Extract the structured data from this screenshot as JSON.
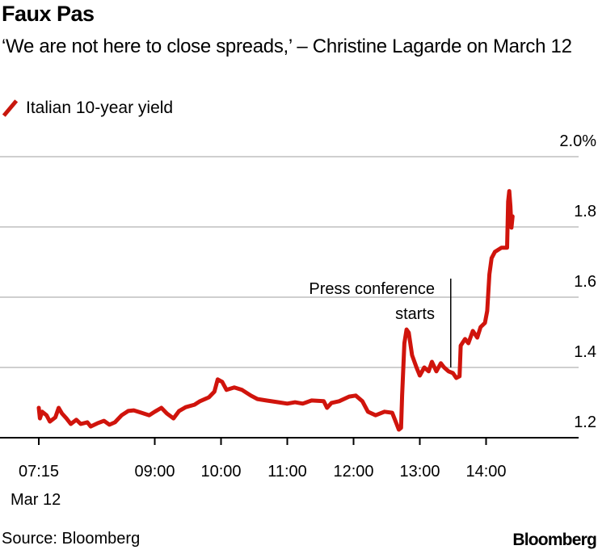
{
  "title": "Faux Pas",
  "subtitle": "‘We are not here to close spreads,’ – Christine Lagarde on March 12",
  "source": "Source: Bloomberg",
  "logo": "Bloomberg",
  "chart_data": {
    "type": "line",
    "title": "Faux Pas",
    "xlabel": "",
    "ylabel": "",
    "ylim": [
      1.2,
      2.0
    ],
    "yticks": [
      "1.2",
      "1.4",
      "1.6",
      "1.8",
      "2.0%"
    ],
    "ytick_values": [
      1.2,
      1.4,
      1.6,
      1.8,
      2.0
    ],
    "xticks": [
      "07:15",
      "09:00",
      "10:00",
      "11:00",
      "12:00",
      "13:00",
      "14:00"
    ],
    "x_sublabel": "Mar 12",
    "grid": true,
    "legend": "top-left",
    "color": "#d0140c",
    "annotation": {
      "text_line1": "Press conference",
      "text_line2": "starts",
      "x": "13:28"
    },
    "series": [
      {
        "name": "Italian 10-year yield",
        "x": [
          "07:15",
          "07:16",
          "07:18",
          "07:22",
          "07:25",
          "07:30",
          "07:33",
          "07:36",
          "07:40",
          "07:44",
          "07:49",
          "07:53",
          "07:59",
          "08:02",
          "08:08",
          "08:14",
          "08:19",
          "08:24",
          "08:30",
          "08:36",
          "08:41",
          "08:48",
          "08:55",
          "09:00",
          "09:06",
          "09:11",
          "09:17",
          "09:22",
          "09:28",
          "09:36",
          "09:41",
          "09:49",
          "09:54",
          "09:57",
          "10:01",
          "10:05",
          "10:12",
          "10:19",
          "10:27",
          "10:33",
          "10:41",
          "10:52",
          "11:00",
          "11:07",
          "11:14",
          "11:22",
          "11:33",
          "11:36",
          "11:40",
          "11:47",
          "11:56",
          "12:02",
          "12:08",
          "12:13",
          "12:20",
          "12:28",
          "12:35",
          "12:39",
          "12:41",
          "12:43",
          "12:44",
          "12:46",
          "12:48",
          "12:50",
          "12:53",
          "12:57",
          "13:00",
          "13:04",
          "13:08",
          "13:11",
          "13:15",
          "13:19",
          "13:22",
          "13:26",
          "13:30",
          "13:33",
          "13:36",
          "13:37",
          "13:41",
          "13:44",
          "13:48",
          "13:52",
          "13:55",
          "13:59",
          "14:01",
          "14:03",
          "14:05",
          "14:08",
          "14:14",
          "14:19",
          "14:20",
          "14:21",
          "14:22",
          "14:23",
          "14:24"
        ],
        "values": [
          1.285,
          1.255,
          1.274,
          1.264,
          1.246,
          1.258,
          1.285,
          1.269,
          1.255,
          1.239,
          1.251,
          1.239,
          1.244,
          1.232,
          1.241,
          1.248,
          1.237,
          1.244,
          1.264,
          1.276,
          1.278,
          1.271,
          1.264,
          1.274,
          1.285,
          1.269,
          1.255,
          1.276,
          1.287,
          1.294,
          1.304,
          1.315,
          1.331,
          1.366,
          1.359,
          1.336,
          1.343,
          1.336,
          1.32,
          1.31,
          1.306,
          1.301,
          1.297,
          1.301,
          1.297,
          1.306,
          1.304,
          1.285,
          1.299,
          1.304,
          1.317,
          1.32,
          1.304,
          1.274,
          1.264,
          1.274,
          1.271,
          1.239,
          1.223,
          1.228,
          1.32,
          1.469,
          1.508,
          1.499,
          1.435,
          1.4,
          1.377,
          1.4,
          1.389,
          1.416,
          1.389,
          1.412,
          1.4,
          1.389,
          1.384,
          1.37,
          1.375,
          1.462,
          1.481,
          1.469,
          1.504,
          1.485,
          1.515,
          1.527,
          1.561,
          1.665,
          1.711,
          1.729,
          1.741,
          1.741,
          1.872,
          1.902,
          1.86,
          1.798,
          1.83
        ]
      }
    ]
  }
}
